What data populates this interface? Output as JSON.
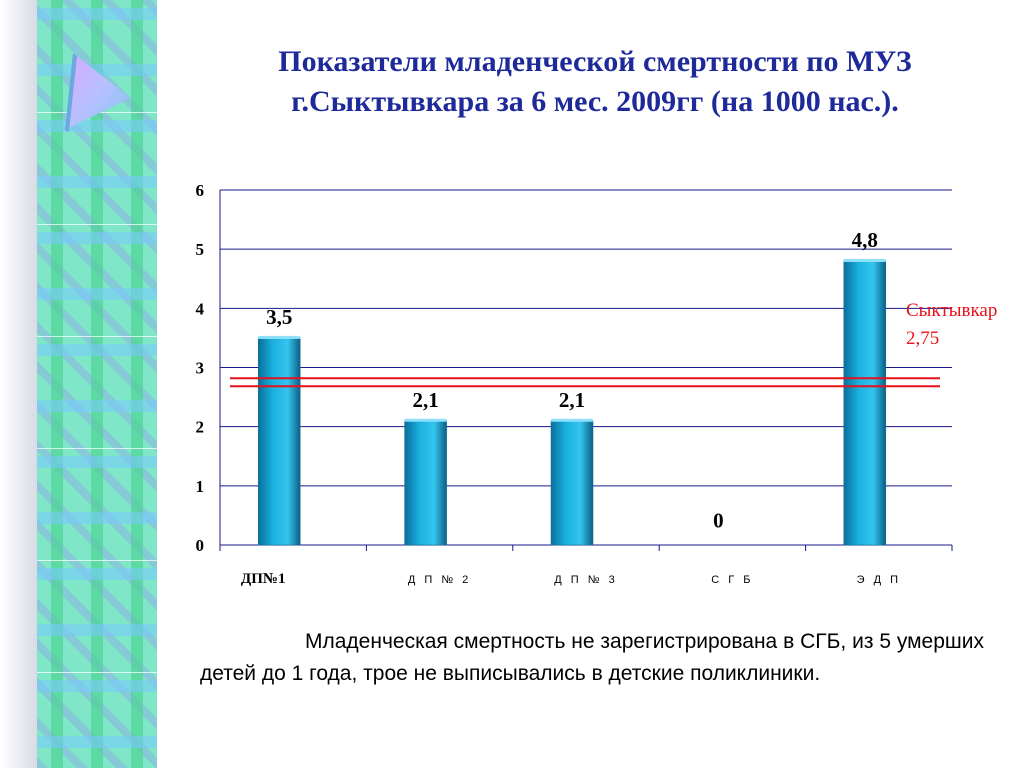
{
  "title": "Показатели младенческой смертности по МУЗ г.Сыктывкара за 6 мес. 2009гг (на 1000 нас.).",
  "note": "Младенческая смертность не зарегистрирована в СГБ, из 5 умерших детей до 1 года, трое не выписывались в детские поликлиники.",
  "reference_label": "Сыктывкар 2,75",
  "colors": {
    "bar": "#1ab0e0",
    "reference_line": "#e8101a",
    "title": "#1f2a9a"
  },
  "chart_data": {
    "type": "bar",
    "categories": [
      "ДП№1",
      "Д П № 2",
      "Д П № 3",
      "С Г Б",
      "Э Д П"
    ],
    "values": [
      3.5,
      2.1,
      2.1,
      0,
      4.8
    ],
    "value_labels": [
      "3,5",
      "2,1",
      "2,1",
      "0",
      "4,8"
    ],
    "title": "",
    "xlabel": "",
    "ylabel": "",
    "ylim": [
      0,
      6
    ],
    "yticks": [
      "0",
      "1",
      "2",
      "3",
      "4",
      "5",
      "6"
    ],
    "grid": true,
    "reference": {
      "value": 2.75,
      "label": "Сыктывкар 2,75"
    }
  }
}
